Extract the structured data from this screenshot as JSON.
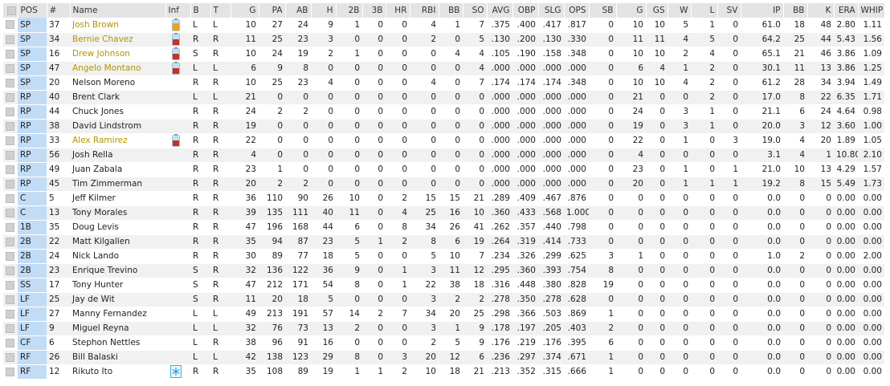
{
  "table": {
    "columns": [
      "POS",
      "#",
      "Name",
      "Inf",
      "B",
      "T",
      "G",
      "PA",
      "AB",
      "H",
      "2B",
      "3B",
      "HR",
      "RBI",
      "BB",
      "SO",
      "AVG",
      "OBP",
      "SLG",
      "OPS",
      "SB",
      "G",
      "GS",
      "W",
      "L",
      "SV",
      "IP",
      "BB",
      "K",
      "ERA",
      "WHIP"
    ],
    "inf": [
      "injury-minor",
      "injury",
      "injury",
      "injury",
      null,
      null,
      null,
      null,
      "injury",
      null,
      null,
      null,
      null,
      null,
      null,
      null,
      null,
      null,
      null,
      null,
      null,
      null,
      null,
      null,
      "cold"
    ],
    "rows": [
      [
        "SP",
        "37",
        "Josh Brown",
        "L",
        "L",
        "10",
        "27",
        "24",
        "9",
        "1",
        "0",
        "0",
        "4",
        "1",
        "7",
        ".375",
        ".400",
        ".417",
        ".817",
        "0",
        "10",
        "10",
        "5",
        "1",
        "0",
        "61.0",
        "18",
        "48",
        "2.80",
        "1.11"
      ],
      [
        "SP",
        "34",
        "Bernie Chavez",
        "R",
        "R",
        "11",
        "25",
        "23",
        "3",
        "0",
        "0",
        "0",
        "2",
        "0",
        "5",
        ".130",
        ".200",
        ".130",
        ".330",
        "0",
        "11",
        "11",
        "4",
        "5",
        "0",
        "64.2",
        "25",
        "44",
        "5.43",
        "1.56"
      ],
      [
        "SP",
        "16",
        "Drew Johnson",
        "S",
        "R",
        "10",
        "24",
        "19",
        "2",
        "1",
        "0",
        "0",
        "0",
        "4",
        "4",
        ".105",
        ".190",
        ".158",
        ".348",
        "0",
        "10",
        "10",
        "2",
        "4",
        "0",
        "65.1",
        "21",
        "46",
        "3.86",
        "1.09"
      ],
      [
        "SP",
        "47",
        "Angelo Montano",
        "L",
        "L",
        "6",
        "9",
        "8",
        "0",
        "0",
        "0",
        "0",
        "0",
        "0",
        "4",
        ".000",
        ".000",
        ".000",
        ".000",
        "0",
        "6",
        "4",
        "1",
        "2",
        "0",
        "30.1",
        "11",
        "13",
        "3.86",
        "1.25"
      ],
      [
        "SP",
        "20",
        "Nelson Moreno",
        "R",
        "R",
        "10",
        "25",
        "23",
        "4",
        "0",
        "0",
        "0",
        "4",
        "0",
        "7",
        ".174",
        ".174",
        ".174",
        ".348",
        "0",
        "10",
        "10",
        "4",
        "2",
        "0",
        "61.2",
        "28",
        "34",
        "3.94",
        "1.49"
      ],
      [
        "RP",
        "40",
        "Brent Clark",
        "L",
        "L",
        "21",
        "0",
        "0",
        "0",
        "0",
        "0",
        "0",
        "0",
        "0",
        "0",
        ".000",
        ".000",
        ".000",
        ".000",
        "0",
        "21",
        "0",
        "0",
        "2",
        "0",
        "17.0",
        "8",
        "22",
        "6.35",
        "1.71"
      ],
      [
        "RP",
        "44",
        "Chuck Jones",
        "R",
        "R",
        "24",
        "2",
        "2",
        "0",
        "0",
        "0",
        "0",
        "0",
        "0",
        "0",
        ".000",
        ".000",
        ".000",
        ".000",
        "0",
        "24",
        "0",
        "3",
        "1",
        "0",
        "21.1",
        "6",
        "24",
        "4.64",
        "0.98"
      ],
      [
        "RP",
        "38",
        "David Lindstrom",
        "R",
        "R",
        "19",
        "0",
        "0",
        "0",
        "0",
        "0",
        "0",
        "0",
        "0",
        "0",
        ".000",
        ".000",
        ".000",
        ".000",
        "0",
        "19",
        "0",
        "3",
        "1",
        "0",
        "20.0",
        "3",
        "12",
        "3.60",
        "1.00"
      ],
      [
        "RP",
        "33",
        "Alex Ramirez",
        "R",
        "R",
        "22",
        "0",
        "0",
        "0",
        "0",
        "0",
        "0",
        "0",
        "0",
        "0",
        ".000",
        ".000",
        ".000",
        ".000",
        "0",
        "22",
        "0",
        "1",
        "0",
        "3",
        "19.0",
        "4",
        "20",
        "1.89",
        "1.05"
      ],
      [
        "RP",
        "56",
        "Josh Rella",
        "R",
        "R",
        "4",
        "0",
        "0",
        "0",
        "0",
        "0",
        "0",
        "0",
        "0",
        "0",
        ".000",
        ".000",
        ".000",
        ".000",
        "0",
        "4",
        "0",
        "0",
        "0",
        "0",
        "3.1",
        "4",
        "1",
        "10.80",
        "2.10"
      ],
      [
        "RP",
        "49",
        "Juan Zabala",
        "R",
        "R",
        "23",
        "1",
        "0",
        "0",
        "0",
        "0",
        "0",
        "0",
        "0",
        "0",
        ".000",
        ".000",
        ".000",
        ".000",
        "0",
        "23",
        "0",
        "1",
        "0",
        "1",
        "21.0",
        "10",
        "13",
        "4.29",
        "1.57"
      ],
      [
        "RP",
        "45",
        "Tim Zimmerman",
        "R",
        "R",
        "20",
        "2",
        "2",
        "0",
        "0",
        "0",
        "0",
        "0",
        "0",
        "0",
        ".000",
        ".000",
        ".000",
        ".000",
        "0",
        "20",
        "0",
        "1",
        "1",
        "1",
        "19.2",
        "8",
        "15",
        "5.49",
        "1.73"
      ],
      [
        "C",
        "5",
        "Jeff Kilmer",
        "R",
        "R",
        "36",
        "110",
        "90",
        "26",
        "10",
        "0",
        "2",
        "15",
        "15",
        "21",
        ".289",
        ".409",
        ".467",
        ".876",
        "0",
        "0",
        "0",
        "0",
        "0",
        "0",
        "0.0",
        "0",
        "0",
        "0.00",
        "0.00"
      ],
      [
        "C",
        "13",
        "Tony Morales",
        "R",
        "R",
        "39",
        "135",
        "111",
        "40",
        "11",
        "0",
        "4",
        "25",
        "16",
        "10",
        ".360",
        ".433",
        ".568",
        "1.000",
        "0",
        "0",
        "0",
        "0",
        "0",
        "0",
        "0.0",
        "0",
        "0",
        "0.00",
        "0.00"
      ],
      [
        "1B",
        "35",
        "Doug Levis",
        "R",
        "R",
        "47",
        "196",
        "168",
        "44",
        "6",
        "0",
        "8",
        "34",
        "26",
        "41",
        ".262",
        ".357",
        ".440",
        ".798",
        "0",
        "0",
        "0",
        "0",
        "0",
        "0",
        "0.0",
        "0",
        "0",
        "0.00",
        "0.00"
      ],
      [
        "2B",
        "22",
        "Matt Kilgallen",
        "R",
        "R",
        "35",
        "94",
        "87",
        "23",
        "5",
        "1",
        "2",
        "8",
        "6",
        "19",
        ".264",
        ".319",
        ".414",
        ".733",
        "0",
        "0",
        "0",
        "0",
        "0",
        "0",
        "0.0",
        "0",
        "0",
        "0.00",
        "0.00"
      ],
      [
        "2B",
        "24",
        "Nick Lando",
        "R",
        "R",
        "30",
        "89",
        "77",
        "18",
        "5",
        "0",
        "0",
        "5",
        "10",
        "7",
        ".234",
        ".326",
        ".299",
        ".625",
        "3",
        "1",
        "0",
        "0",
        "0",
        "0",
        "1.0",
        "2",
        "0",
        "0.00",
        "2.00"
      ],
      [
        "2B",
        "23",
        "Enrique Trevino",
        "S",
        "R",
        "32",
        "136",
        "122",
        "36",
        "9",
        "0",
        "1",
        "3",
        "11",
        "12",
        ".295",
        ".360",
        ".393",
        ".754",
        "8",
        "0",
        "0",
        "0",
        "0",
        "0",
        "0.0",
        "0",
        "0",
        "0.00",
        "0.00"
      ],
      [
        "SS",
        "17",
        "Tony Hunter",
        "S",
        "R",
        "47",
        "212",
        "171",
        "54",
        "8",
        "0",
        "1",
        "22",
        "38",
        "18",
        ".316",
        ".448",
        ".380",
        ".828",
        "19",
        "0",
        "0",
        "0",
        "0",
        "0",
        "0.0",
        "0",
        "0",
        "0.00",
        "0.00"
      ],
      [
        "LF",
        "25",
        "Jay de Wit",
        "S",
        "R",
        "11",
        "20",
        "18",
        "5",
        "0",
        "0",
        "0",
        "3",
        "2",
        "2",
        ".278",
        ".350",
        ".278",
        ".628",
        "0",
        "0",
        "0",
        "0",
        "0",
        "0",
        "0.0",
        "0",
        "0",
        "0.00",
        "0.00"
      ],
      [
        "LF",
        "27",
        "Manny Fernandez",
        "L",
        "L",
        "49",
        "213",
        "191",
        "57",
        "14",
        "2",
        "7",
        "34",
        "20",
        "25",
        ".298",
        ".366",
        ".503",
        ".869",
        "1",
        "0",
        "0",
        "0",
        "0",
        "0",
        "0.0",
        "0",
        "0",
        "0.00",
        "0.00"
      ],
      [
        "LF",
        "9",
        "Miguel Reyna",
        "L",
        "L",
        "32",
        "76",
        "73",
        "13",
        "2",
        "0",
        "0",
        "3",
        "1",
        "9",
        ".178",
        ".197",
        ".205",
        ".403",
        "2",
        "0",
        "0",
        "0",
        "0",
        "0",
        "0.0",
        "0",
        "0",
        "0.00",
        "0.00"
      ],
      [
        "CF",
        "6",
        "Stephon Nettles",
        "L",
        "R",
        "38",
        "96",
        "91",
        "16",
        "0",
        "0",
        "0",
        "2",
        "5",
        "9",
        ".176",
        ".219",
        ".176",
        ".395",
        "6",
        "0",
        "0",
        "0",
        "0",
        "0",
        "0.0",
        "0",
        "0",
        "0.00",
        "0.00"
      ],
      [
        "RF",
        "26",
        "Bill Balaski",
        "L",
        "L",
        "42",
        "138",
        "123",
        "29",
        "8",
        "0",
        "3",
        "20",
        "12",
        "6",
        ".236",
        ".297",
        ".374",
        ".671",
        "1",
        "0",
        "0",
        "0",
        "0",
        "0",
        "0.0",
        "0",
        "0",
        "0.00",
        "0.00"
      ],
      [
        "RF",
        "12",
        "Rikuto Ito",
        "R",
        "R",
        "35",
        "108",
        "89",
        "19",
        "1",
        "1",
        "2",
        "10",
        "18",
        "21",
        ".213",
        ".352",
        ".315",
        ".666",
        "1",
        "0",
        "0",
        "0",
        "0",
        "0",
        "0.0",
        "0",
        "0",
        "0.00",
        "0.00"
      ]
    ]
  }
}
